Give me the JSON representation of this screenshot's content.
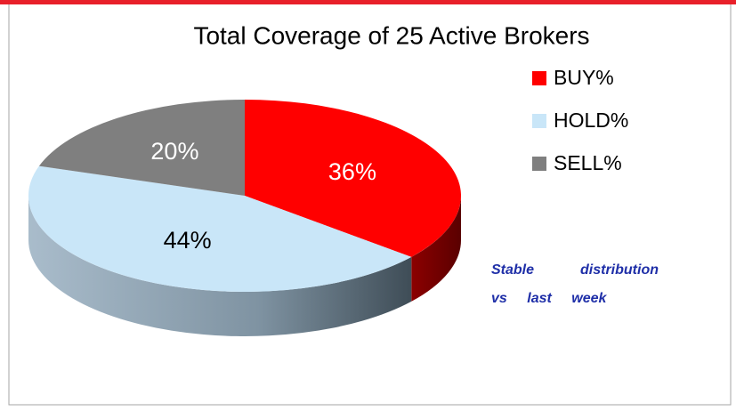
{
  "chart_data": {
    "type": "pie",
    "title": "Total Coverage of 25 Active Brokers",
    "categories": [
      "BUY%",
      "HOLD%",
      "SELL%"
    ],
    "values": [
      36,
      44,
      20
    ],
    "value_labels": [
      "36%",
      "44%",
      "20%"
    ],
    "colors": [
      "#ff0000",
      "#c9e6f8",
      "#7f7f7f"
    ],
    "annotation": "Stable distribution vs last week"
  }
}
